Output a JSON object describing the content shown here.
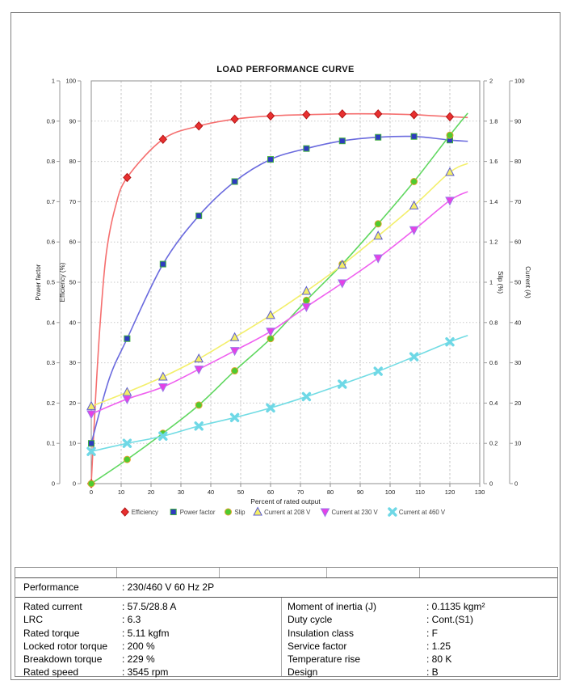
{
  "chart_data": {
    "type": "line",
    "title": "LOAD PERFORMANCE CURVE",
    "xlabel": "Percent of rated output",
    "x_range": [
      0,
      130
    ],
    "x_ticks": [
      "0",
      "10",
      "20",
      "30",
      "40",
      "50",
      "60",
      "70",
      "80",
      "90",
      "100",
      "110",
      "120",
      "130"
    ],
    "grid": true,
    "legend_position": "bottom",
    "axes": {
      "power_factor": {
        "label": "Power factor",
        "range": [
          0,
          1
        ],
        "ticks": [
          "0",
          "0.1",
          "0.2",
          "0.3",
          "0.4",
          "0.5",
          "0.6",
          "0.7",
          "0.8",
          "0.9",
          "1"
        ]
      },
      "efficiency": {
        "label": "Efficiency (%)",
        "range": [
          0,
          100
        ],
        "ticks": [
          "0",
          "10",
          "20",
          "30",
          "40",
          "50",
          "60",
          "70",
          "80",
          "90",
          "100"
        ]
      },
      "slip": {
        "label": "Slip (%)",
        "range": [
          0,
          2
        ],
        "ticks": [
          "0",
          "0.2",
          "0.4",
          "0.6",
          "0.8",
          "1",
          "1.2",
          "1.4",
          "1.6",
          "1.8",
          "2"
        ]
      },
      "current": {
        "label": "Current (A)",
        "range": [
          0,
          100
        ],
        "ticks": [
          "0",
          "10",
          "20",
          "30",
          "40",
          "50",
          "60",
          "70",
          "80",
          "90",
          "100"
        ]
      }
    },
    "series": [
      {
        "name": "Efficiency",
        "axis": "efficiency",
        "marker": "diamond",
        "line_color": "#f56f6f",
        "marker_fill": "#e83030",
        "marker_edge": "#b31414",
        "x": [
          0,
          12,
          24,
          36,
          48,
          60,
          72,
          84,
          96,
          108,
          120
        ],
        "y": [
          0,
          76,
          85.5,
          88.8,
          90.5,
          91.3,
          91.6,
          91.8,
          91.8,
          91.6,
          91.1
        ],
        "line_x": [
          0,
          1.5,
          3,
          5,
          8,
          12,
          24,
          36,
          48,
          60,
          72,
          84,
          96,
          108,
          120,
          126
        ],
        "line_y": [
          0,
          22,
          40,
          57,
          68.5,
          76,
          85.5,
          88.8,
          90.5,
          91.3,
          91.6,
          91.8,
          91.8,
          91.6,
          91.1,
          90.9
        ]
      },
      {
        "name": "Power factor",
        "axis": "power_factor",
        "marker": "square",
        "line_color": "#6a6ade",
        "marker_fill": "#2e3bc0",
        "marker_edge": "#3fae3f",
        "x": [
          0,
          12,
          24,
          36,
          48,
          60,
          72,
          84,
          96,
          108,
          120
        ],
        "y": [
          0.1,
          0.36,
          0.545,
          0.665,
          0.75,
          0.805,
          0.832,
          0.851,
          0.86,
          0.862,
          0.853
        ],
        "line_x": [
          0,
          6,
          12,
          24,
          36,
          48,
          60,
          72,
          84,
          96,
          108,
          120,
          126
        ],
        "line_y": [
          0.1,
          0.26,
          0.36,
          0.545,
          0.665,
          0.75,
          0.805,
          0.832,
          0.851,
          0.86,
          0.862,
          0.853,
          0.85
        ]
      },
      {
        "name": "Slip",
        "axis": "slip",
        "marker": "circle",
        "line_color": "#5fd75f",
        "marker_fill": "#4ecb30",
        "marker_edge": "#e0a32e",
        "x": [
          0,
          12,
          24,
          36,
          48,
          60,
          72,
          84,
          96,
          108,
          120
        ],
        "y": [
          0,
          0.12,
          0.25,
          0.39,
          0.56,
          0.72,
          0.91,
          1.09,
          1.29,
          1.5,
          1.73
        ],
        "line_x": [
          0,
          12,
          24,
          36,
          48,
          60,
          72,
          84,
          96,
          108,
          120,
          126
        ],
        "line_y": [
          0,
          0.12,
          0.25,
          0.39,
          0.56,
          0.72,
          0.91,
          1.09,
          1.29,
          1.5,
          1.73,
          1.84
        ]
      },
      {
        "name": "Current at 208 V",
        "axis": "current",
        "marker": "triangle-up",
        "line_color": "#f3ef6b",
        "marker_fill": "#f4ee66",
        "marker_edge": "#5b5bd0",
        "x": [
          0,
          12,
          24,
          36,
          48,
          60,
          72,
          84,
          96,
          108,
          120
        ],
        "y": [
          19.2,
          22.7,
          26.5,
          31,
          36.3,
          41.8,
          47.8,
          54.3,
          61.5,
          69,
          77.3
        ],
        "line_x": [
          0,
          12,
          24,
          36,
          48,
          60,
          72,
          84,
          96,
          108,
          120,
          126
        ],
        "line_y": [
          19.2,
          22.7,
          26.5,
          31,
          36.3,
          41.8,
          47.8,
          54.3,
          61.5,
          69,
          77.3,
          79.5
        ]
      },
      {
        "name": "Current at 230 V",
        "axis": "current",
        "marker": "triangle-down",
        "line_color": "#ef5fef",
        "marker_fill": "#e640e6",
        "marker_edge": "#9a7ae8",
        "x": [
          0,
          12,
          24,
          36,
          48,
          60,
          72,
          84,
          96,
          108,
          120
        ],
        "y": [
          17.3,
          21,
          24,
          28.4,
          33,
          37.8,
          43.9,
          49.8,
          56,
          63,
          70.3
        ],
        "line_x": [
          0,
          12,
          24,
          36,
          48,
          60,
          72,
          84,
          96,
          108,
          120,
          126
        ],
        "line_y": [
          17.3,
          21,
          24,
          28.4,
          33,
          37.8,
          43.9,
          49.8,
          56,
          63,
          70.3,
          72.5
        ]
      },
      {
        "name": "Current at 460 V",
        "axis": "current",
        "marker": "x",
        "line_color": "#72dce4",
        "marker_fill": "#6fd8e6",
        "marker_edge": "#6fd8e6",
        "x": [
          0,
          12,
          24,
          36,
          48,
          60,
          72,
          84,
          96,
          108,
          120
        ],
        "y": [
          8,
          10,
          11.8,
          14.3,
          16.4,
          18.8,
          21.6,
          24.7,
          27.9,
          31.5,
          35.2
        ],
        "line_x": [
          0,
          12,
          24,
          36,
          48,
          60,
          72,
          84,
          96,
          108,
          120,
          126
        ],
        "line_y": [
          8,
          10,
          11.8,
          14.3,
          16.4,
          18.8,
          21.6,
          24.7,
          27.9,
          31.5,
          35.2,
          36.8
        ]
      }
    ]
  },
  "table": {
    "performance": {
      "label": "Performance",
      "value": ": 230/460 V 60 Hz 2P"
    },
    "left_rows": [
      {
        "label": "Rated current",
        "value": ": 57.5/28.8 A"
      },
      {
        "label": "LRC",
        "value": ": 6.3"
      },
      {
        "label": "Rated torque",
        "value": ": 5.11 kgfm"
      },
      {
        "label": "Locked rotor torque",
        "value": ": 200 %"
      },
      {
        "label": "Breakdown torque",
        "value": ": 229 %"
      },
      {
        "label": "Rated speed",
        "value": ": 3545 rpm"
      }
    ],
    "right_rows": [
      {
        "label": "Moment of inertia (J)",
        "value": ": 0.1135 kgm²"
      },
      {
        "label": "Duty cycle",
        "value": ": Cont.(S1)"
      },
      {
        "label": "Insulation class",
        "value": ": F"
      },
      {
        "label": "Service factor",
        "value": ": 1.25"
      },
      {
        "label": "Temperature rise",
        "value": ": 80 K"
      },
      {
        "label": "Design",
        "value": ": B"
      }
    ]
  }
}
